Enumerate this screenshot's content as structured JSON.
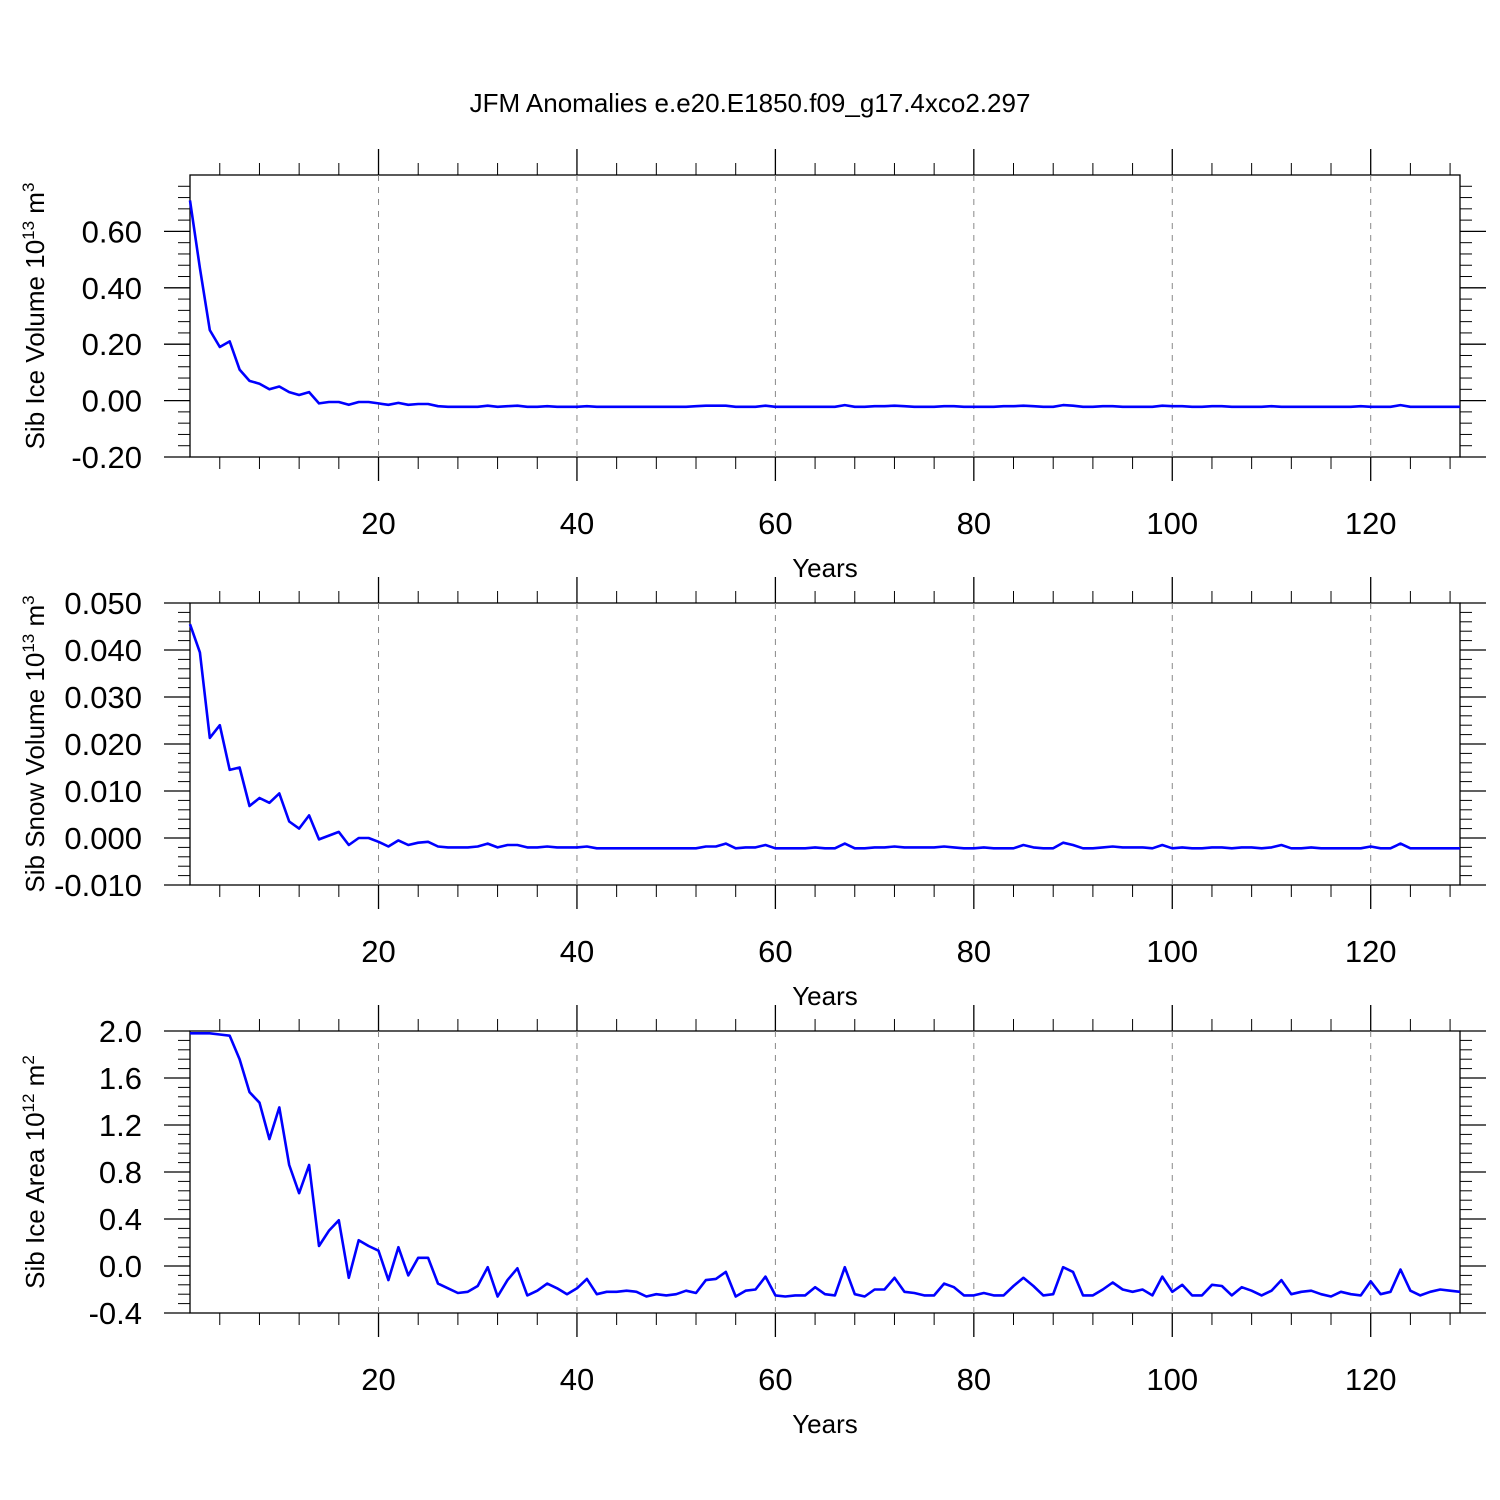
{
  "chart_data": [
    {
      "type": "line",
      "title": "JFM Anomalies e.e20.E1850.f09_g17.4xco2.297",
      "ylabel_main": "Sib Ice Volume 10",
      "ylabel_exp": "13",
      "ylabel_unit": " m",
      "ylabel_unit_exp": "3",
      "xlabel": "Years",
      "xlim": [
        1,
        129
      ],
      "ylim": [
        -0.2,
        0.8
      ],
      "yticks": [
        -0.2,
        0.0,
        0.2,
        0.4,
        0.6
      ],
      "yticklabels": [
        "-0.20",
        "0.00",
        "0.20",
        "0.40",
        "0.60"
      ],
      "xticks": [
        20,
        40,
        60,
        80,
        100,
        120
      ],
      "xticklabels": [
        "20",
        "40",
        "60",
        "80",
        "100",
        "120"
      ],
      "color": "#0000ff",
      "series": [
        {
          "name": "Sib Ice Volume",
          "x_start": 1,
          "values": [
            0.71,
            0.47,
            0.25,
            0.19,
            0.21,
            0.11,
            0.07,
            0.06,
            0.04,
            0.05,
            0.03,
            0.02,
            0.03,
            -0.01,
            -0.005,
            -0.005,
            -0.015,
            -0.005,
            -0.005,
            -0.01,
            -0.015,
            -0.008,
            -0.015,
            -0.012,
            -0.012,
            -0.02,
            -0.022,
            -0.022,
            -0.022,
            -0.022,
            -0.018,
            -0.022,
            -0.02,
            -0.018,
            -0.022,
            -0.022,
            -0.02,
            -0.022,
            -0.022,
            -0.022,
            -0.02,
            -0.022,
            -0.022,
            -0.022,
            -0.022,
            -0.022,
            -0.022,
            -0.022,
            -0.022,
            -0.022,
            -0.022,
            -0.02,
            -0.018,
            -0.018,
            -0.018,
            -0.022,
            -0.022,
            -0.022,
            -0.018,
            -0.022,
            -0.022,
            -0.022,
            -0.022,
            -0.022,
            -0.022,
            -0.022,
            -0.016,
            -0.022,
            -0.022,
            -0.02,
            -0.02,
            -0.018,
            -0.02,
            -0.022,
            -0.022,
            -0.022,
            -0.02,
            -0.02,
            -0.022,
            -0.022,
            -0.022,
            -0.022,
            -0.02,
            -0.02,
            -0.018,
            -0.02,
            -0.022,
            -0.022,
            -0.016,
            -0.018,
            -0.022,
            -0.022,
            -0.02,
            -0.02,
            -0.022,
            -0.022,
            -0.022,
            -0.022,
            -0.018,
            -0.02,
            -0.02,
            -0.022,
            -0.022,
            -0.02,
            -0.02,
            -0.022,
            -0.022,
            -0.022,
            -0.022,
            -0.02,
            -0.022,
            -0.022,
            -0.022,
            -0.022,
            -0.022,
            -0.022,
            -0.022,
            -0.022,
            -0.02,
            -0.022,
            -0.022,
            -0.022,
            -0.016,
            -0.022,
            -0.022,
            -0.022,
            -0.022,
            -0.022,
            -0.022
          ]
        }
      ]
    },
    {
      "type": "line",
      "ylabel_main": "Sib Snow Volume 10",
      "ylabel_exp": "13",
      "ylabel_unit": " m",
      "ylabel_unit_exp": "3",
      "xlabel": "Years",
      "xlim": [
        1,
        129
      ],
      "ylim": [
        -0.01,
        0.05
      ],
      "yticks": [
        -0.01,
        0.0,
        0.01,
        0.02,
        0.03,
        0.04,
        0.05
      ],
      "yticklabels": [
        "-0.010",
        "0.000",
        "0.010",
        "0.020",
        "0.030",
        "0.040",
        "0.050"
      ],
      "xticks": [
        20,
        40,
        60,
        80,
        100,
        120
      ],
      "xticklabels": [
        "20",
        "40",
        "60",
        "80",
        "100",
        "120"
      ],
      "color": "#0000ff",
      "series": [
        {
          "name": "Sib Snow Volume",
          "x_start": 1,
          "values": [
            0.0455,
            0.0395,
            0.0213,
            0.024,
            0.0145,
            0.015,
            0.0068,
            0.0085,
            0.0075,
            0.0095,
            0.0035,
            0.002,
            0.0048,
            -0.0003,
            0.0005,
            0.0013,
            -0.0015,
            0.0,
            0.0,
            -0.0008,
            -0.0018,
            -0.0005,
            -0.0015,
            -0.001,
            -0.0008,
            -0.0018,
            -0.002,
            -0.002,
            -0.002,
            -0.0018,
            -0.0012,
            -0.002,
            -0.0015,
            -0.0015,
            -0.002,
            -0.002,
            -0.0018,
            -0.002,
            -0.002,
            -0.002,
            -0.0018,
            -0.0022,
            -0.0022,
            -0.0022,
            -0.0022,
            -0.0022,
            -0.0022,
            -0.0022,
            -0.0022,
            -0.0022,
            -0.0022,
            -0.0022,
            -0.0018,
            -0.0018,
            -0.0012,
            -0.0022,
            -0.002,
            -0.002,
            -0.0015,
            -0.0022,
            -0.0022,
            -0.0022,
            -0.0022,
            -0.002,
            -0.0022,
            -0.0022,
            -0.0012,
            -0.0022,
            -0.0022,
            -0.002,
            -0.002,
            -0.0018,
            -0.002,
            -0.002,
            -0.002,
            -0.002,
            -0.0018,
            -0.002,
            -0.0022,
            -0.0022,
            -0.002,
            -0.0022,
            -0.0022,
            -0.0022,
            -0.0015,
            -0.002,
            -0.0022,
            -0.0022,
            -0.001,
            -0.0015,
            -0.0022,
            -0.0022,
            -0.002,
            -0.0018,
            -0.002,
            -0.002,
            -0.002,
            -0.0022,
            -0.0015,
            -0.0022,
            -0.002,
            -0.0022,
            -0.0022,
            -0.002,
            -0.002,
            -0.0022,
            -0.002,
            -0.002,
            -0.0022,
            -0.002,
            -0.0015,
            -0.0022,
            -0.0022,
            -0.002,
            -0.0022,
            -0.0022,
            -0.0022,
            -0.0022,
            -0.0022,
            -0.0018,
            -0.0022,
            -0.0022,
            -0.0012,
            -0.0022,
            -0.0022,
            -0.0022,
            -0.0022,
            -0.0022,
            -0.0022
          ]
        }
      ]
    },
    {
      "type": "line",
      "ylabel_main": "Sib Ice Area 10",
      "ylabel_exp": "12",
      "ylabel_unit": " m",
      "ylabel_unit_exp": "2",
      "xlabel": "Years",
      "xlim": [
        1,
        129
      ],
      "ylim": [
        -0.4,
        2.0
      ],
      "yticks": [
        -0.4,
        0.0,
        0.4,
        0.8,
        1.2,
        1.6,
        2.0
      ],
      "yticklabels": [
        "-0.4",
        "0.0",
        "0.4",
        "0.8",
        "1.2",
        "1.6",
        "2.0"
      ],
      "xticks": [
        20,
        40,
        60,
        80,
        100,
        120
      ],
      "xticklabels": [
        "20",
        "40",
        "60",
        "80",
        "100",
        "120"
      ],
      "color": "#0000ff",
      "series": [
        {
          "name": "Sib Ice Area",
          "x_start": 1,
          "values": [
            1.98,
            1.98,
            1.98,
            1.97,
            1.96,
            1.76,
            1.48,
            1.39,
            1.08,
            1.35,
            0.86,
            0.62,
            0.86,
            0.17,
            0.3,
            0.39,
            -0.1,
            0.22,
            0.17,
            0.13,
            -0.12,
            0.16,
            -0.08,
            0.07,
            0.07,
            -0.15,
            -0.19,
            -0.23,
            -0.22,
            -0.17,
            -0.01,
            -0.26,
            -0.12,
            -0.02,
            -0.25,
            -0.21,
            -0.15,
            -0.19,
            -0.24,
            -0.19,
            -0.11,
            -0.24,
            -0.22,
            -0.22,
            -0.21,
            -0.22,
            -0.26,
            -0.24,
            -0.25,
            -0.24,
            -0.21,
            -0.23,
            -0.12,
            -0.11,
            -0.05,
            -0.26,
            -0.21,
            -0.2,
            -0.09,
            -0.25,
            -0.26,
            -0.25,
            -0.25,
            -0.18,
            -0.24,
            -0.25,
            -0.01,
            -0.24,
            -0.26,
            -0.2,
            -0.2,
            -0.1,
            -0.22,
            -0.23,
            -0.25,
            -0.25,
            -0.15,
            -0.18,
            -0.25,
            -0.25,
            -0.23,
            -0.25,
            -0.25,
            -0.17,
            -0.1,
            -0.17,
            -0.25,
            -0.24,
            -0.01,
            -0.05,
            -0.25,
            -0.25,
            -0.2,
            -0.14,
            -0.2,
            -0.22,
            -0.2,
            -0.25,
            -0.09,
            -0.22,
            -0.16,
            -0.25,
            -0.25,
            -0.16,
            -0.17,
            -0.25,
            -0.18,
            -0.21,
            -0.25,
            -0.21,
            -0.12,
            -0.24,
            -0.22,
            -0.21,
            -0.24,
            -0.26,
            -0.22,
            -0.24,
            -0.25,
            -0.13,
            -0.24,
            -0.22,
            -0.03,
            -0.21,
            -0.25,
            -0.22,
            -0.2,
            -0.21,
            -0.22
          ]
        }
      ]
    }
  ]
}
